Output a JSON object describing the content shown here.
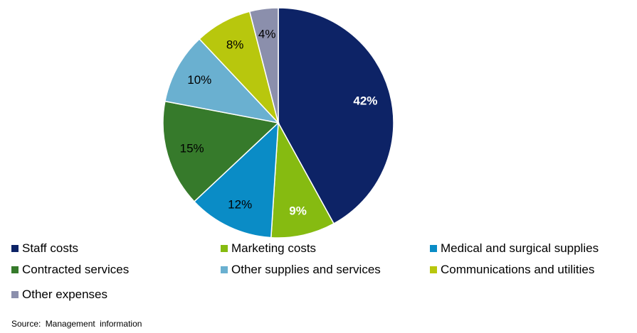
{
  "chart_data": {
    "type": "pie",
    "slices": [
      {
        "label": "Staff costs",
        "value": 42,
        "display": "42%",
        "color": "#0d2366",
        "label_color": "#ffffff",
        "label_bold": true
      },
      {
        "label": "Marketing costs",
        "value": 9,
        "display": "9%",
        "color": "#86bb11",
        "label_color": "#ffffff",
        "label_bold": true
      },
      {
        "label": "Medical and surgical supplies",
        "value": 12,
        "display": "12%",
        "color": "#0a8cc6",
        "label_color": "#000000",
        "label_bold": false
      },
      {
        "label": "Contracted services",
        "value": 15,
        "display": "15%",
        "color": "#367a2b",
        "label_color": "#000000",
        "label_bold": false
      },
      {
        "label": "Other supplies and services",
        "value": 10,
        "display": "10%",
        "color": "#6ab0d0",
        "label_color": "#000000",
        "label_bold": false
      },
      {
        "label": "Communications and utilities",
        "value": 8,
        "display": "8%",
        "color": "#b8c70d",
        "label_color": "#000000",
        "label_bold": false
      },
      {
        "label": "Other expenses",
        "value": 4,
        "display": "4%",
        "color": "#8b8fac",
        "label_color": "#000000",
        "label_bold": false
      }
    ],
    "legend_placement": "bottom",
    "source": "Source: Management information"
  }
}
